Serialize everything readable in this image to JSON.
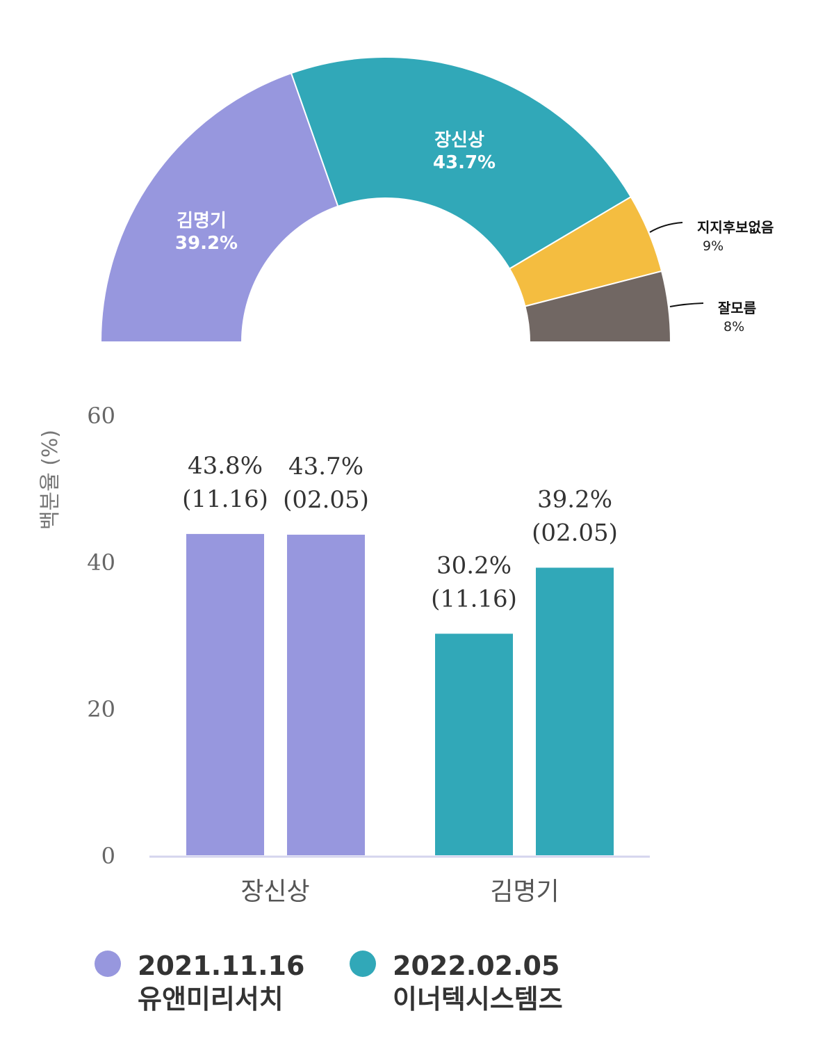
{
  "chart_data": [
    {
      "type": "pie",
      "variant": "semicircle-donut",
      "slices": [
        {
          "name": "김명기",
          "value": 39.2,
          "label": "39.2%",
          "color": "#9797de"
        },
        {
          "name": "장신상",
          "value": 43.7,
          "label": "43.7%",
          "color": "#31a8b8"
        },
        {
          "name": "지지후보없음",
          "value": 9,
          "label": "9%",
          "color": "#f4bd40"
        },
        {
          "name": "잘모름",
          "value": 8,
          "label": "8%",
          "color": "#716763"
        }
      ]
    },
    {
      "type": "bar",
      "ylabel": "백분율 (%)",
      "ylim": [
        0,
        60
      ],
      "yticks": [
        "0",
        "20",
        "40",
        "60"
      ],
      "yticks_values": [
        0,
        20,
        40,
        60
      ],
      "categories": [
        "장신상",
        "김명기"
      ],
      "bars": [
        {
          "category": "장신상",
          "value": 43.8,
          "label_value": "43.8%",
          "label_date": "(11.16)",
          "color": "#9797de"
        },
        {
          "category": "장신상",
          "value": 43.7,
          "label_value": "43.7%",
          "label_date": "(02.05)",
          "color": "#9797de"
        },
        {
          "category": "김명기",
          "value": 30.2,
          "label_value": "30.2%",
          "label_date": "(11.16)",
          "color": "#31a8b8"
        },
        {
          "category": "김명기",
          "value": 39.2,
          "label_value": "39.2%",
          "label_date": "(02.05)",
          "color": "#31a8b8"
        }
      ],
      "legend": [
        {
          "date": "2021.11.16",
          "org": "유앤미리서치",
          "color": "#9797de"
        },
        {
          "date": "2022.02.05",
          "org": "이너텍시스템즈",
          "color": "#31a8b8"
        }
      ],
      "legend_position": "bottom"
    }
  ]
}
